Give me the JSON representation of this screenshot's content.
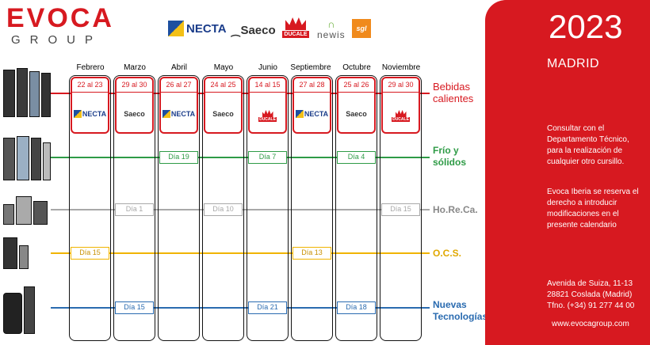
{
  "logo": {
    "name": "EVOCA",
    "sub": "GROUP"
  },
  "brands": {
    "necta": "NECTA",
    "saeco": "Saeco",
    "ducale": "DUCALE",
    "newis": "newis",
    "sgl": "sgl"
  },
  "months": [
    "Febrero",
    "Marzo",
    "Abril",
    "Mayo",
    "Junio",
    "Septiembre",
    "Octubre",
    "Noviembre"
  ],
  "categories": {
    "hot": "Bebidas calientes",
    "cold": "Frío y sólidos",
    "horeca": "Ho.Re.Ca.",
    "ocs": "O.C.S.",
    "tech": "Nuevas Tecnologías"
  },
  "hot_drinks": [
    {
      "date": "22 al 23",
      "brand": "necta"
    },
    {
      "date": "29 al 30",
      "brand": "saeco"
    },
    {
      "date": "26 al 27",
      "brand": "necta"
    },
    {
      "date": "24 al 25",
      "brand": "saeco"
    },
    {
      "date": "14 al 15",
      "brand": "ducale"
    },
    {
      "date": "27 al 28",
      "brand": "necta"
    },
    {
      "date": "25 al 26",
      "brand": "saeco"
    },
    {
      "date": "29 al 30",
      "brand": "ducale"
    }
  ],
  "cold": [
    "Día 19",
    "Día 7",
    "Día 4"
  ],
  "horeca": [
    "Día 1",
    "Día 10",
    "Día 15"
  ],
  "ocs": [
    "Día 15",
    "Día 13"
  ],
  "tech": [
    "Día 15",
    "Día 21",
    "Día 18"
  ],
  "colors": {
    "hot": "#d71920",
    "cold": "#2e9b46",
    "horeca": "#a8a8a8",
    "ocs": "#f0b400",
    "tech": "#2a6bb0"
  },
  "panel": {
    "year": "2023",
    "city": "MADRID",
    "note1": "Consultar con el Departamento Técnico, para la realización de cualquier otro cursillo.",
    "note2": "Evoca Iberia se reserva el derecho a introducir modificaciones en el presente calendario",
    "address1": "Avenida de Suiza, 11-13",
    "address2": "28821 Coslada (Madrid)",
    "phone": "Tfno. (+34) 91 277 44 00",
    "web": "www.evocagroup.com"
  }
}
